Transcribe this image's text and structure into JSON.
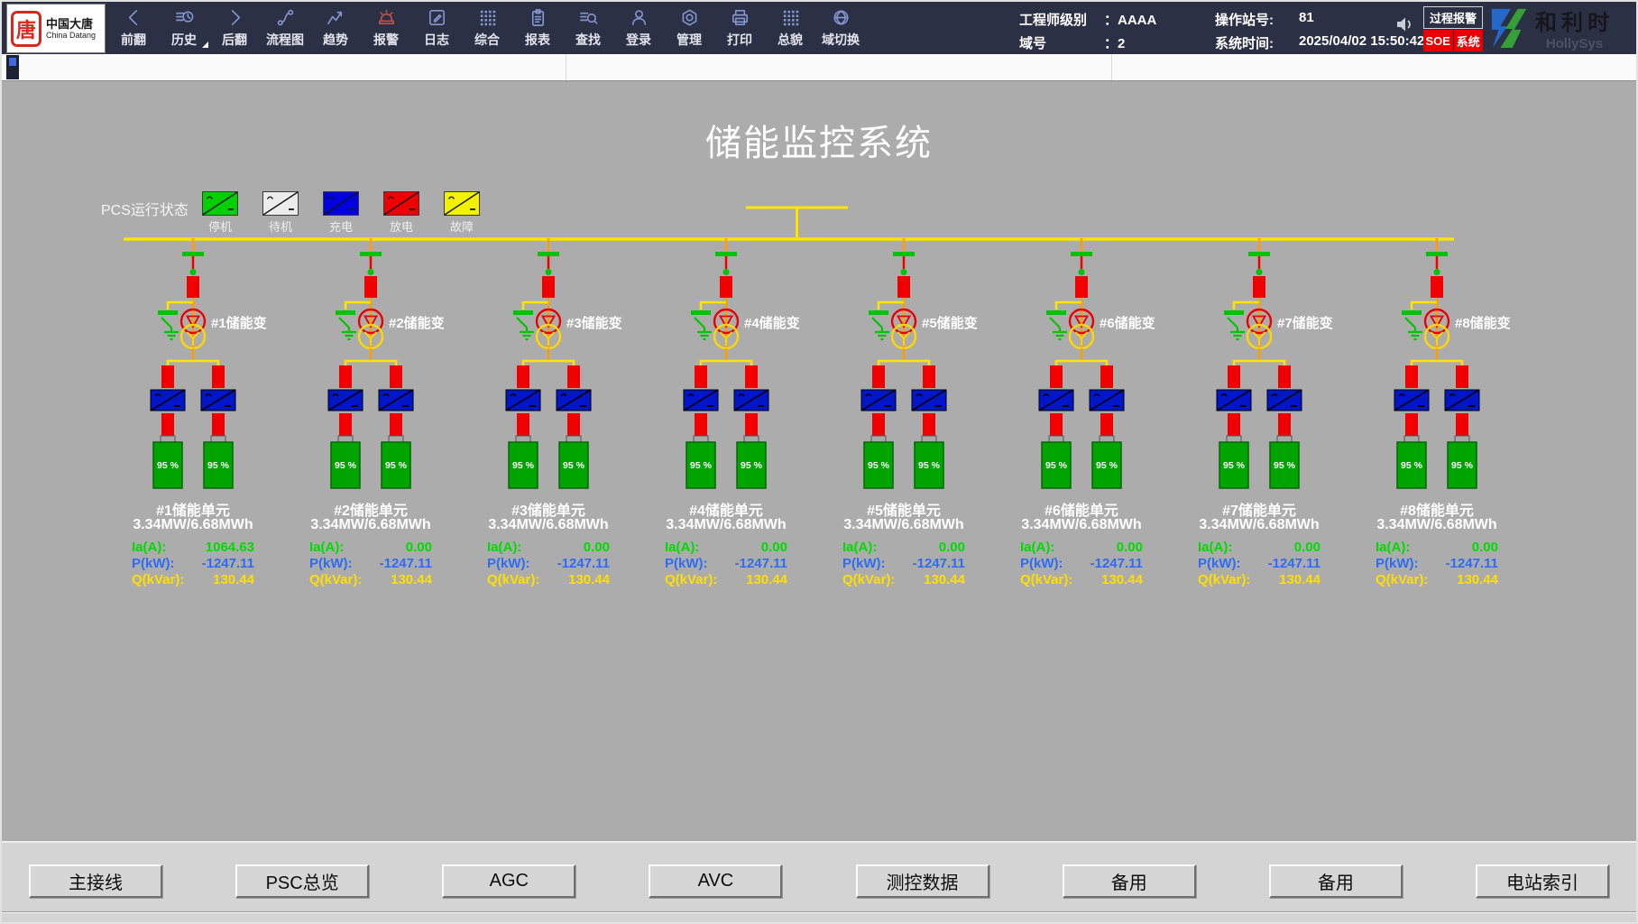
{
  "header": {
    "logo": {
      "seal": "唐",
      "cn": "中国大唐",
      "en": "China Datang"
    },
    "menu": [
      {
        "label": "前翻",
        "icon": "chevron-left"
      },
      {
        "label": "历史",
        "icon": "history",
        "has_dropdown": true
      },
      {
        "label": "后翻",
        "icon": "chevron-right"
      },
      {
        "label": "流程图",
        "icon": "flowchart"
      },
      {
        "label": "趋势",
        "icon": "trend"
      },
      {
        "label": "报警",
        "icon": "alarm",
        "accent": "red"
      },
      {
        "label": "日志",
        "icon": "edit"
      },
      {
        "label": "综合",
        "icon": "grid"
      },
      {
        "label": "报表",
        "icon": "report"
      },
      {
        "label": "查找",
        "icon": "search"
      },
      {
        "label": "登录",
        "icon": "user"
      },
      {
        "label": "管理",
        "icon": "gear"
      },
      {
        "label": "打印",
        "icon": "printer"
      },
      {
        "label": "总貌",
        "icon": "grid"
      },
      {
        "label": "域切换",
        "icon": "globe"
      }
    ],
    "info": {
      "engineer_label": "工程师级别",
      "engineer_value": "：AAAA",
      "domain_label": "域号",
      "domain_value": "：2",
      "station_label": "操作站号:",
      "station_value": "81",
      "time_label": "系统时间:",
      "time_value": "2025/04/02 15:50:42"
    },
    "alarm_panel": {
      "process": "过程报警",
      "soe": "SOE",
      "system": "系统"
    },
    "brand": {
      "cn": "和利时",
      "en": "HollySys"
    }
  },
  "title": "储能监控系统",
  "legend": {
    "label": "PCS运行状态",
    "items": [
      {
        "label": "停机",
        "color": "#00d000"
      },
      {
        "label": "待机",
        "color": "#ececec"
      },
      {
        "label": "充电",
        "color": "#0000e0"
      },
      {
        "label": "放电",
        "color": "#ee0000"
      },
      {
        "label": "故障",
        "color": "#f2f200"
      }
    ]
  },
  "unit_labels": {
    "ia": "Ia(A):",
    "p": "P(kW):",
    "q": "Q(kVar):"
  },
  "units": [
    {
      "transformer": "#1储能变",
      "name": "#1储能单元",
      "capacity": "3.34MW/6.68MWh",
      "ia": "1064.63",
      "p": "-1247.11",
      "q": "130.44",
      "soc1": "95 %",
      "soc2": "95 %"
    },
    {
      "transformer": "#2储能变",
      "name": "#2储能单元",
      "capacity": "3.34MW/6.68MWh",
      "ia": "0.00",
      "p": "-1247.11",
      "q": "130.44",
      "soc1": "95 %",
      "soc2": "95 %"
    },
    {
      "transformer": "#3储能变",
      "name": "#3储能单元",
      "capacity": "3.34MW/6.68MWh",
      "ia": "0.00",
      "p": "-1247.11",
      "q": "130.44",
      "soc1": "95 %",
      "soc2": "95 %"
    },
    {
      "transformer": "#4储能变",
      "name": "#4储能单元",
      "capacity": "3.34MW/6.68MWh",
      "ia": "0.00",
      "p": "-1247.11",
      "q": "130.44",
      "soc1": "95 %",
      "soc2": "95 %"
    },
    {
      "transformer": "#5储能变",
      "name": "#5储能单元",
      "capacity": "3.34MW/6.68MWh",
      "ia": "0.00",
      "p": "-1247.11",
      "q": "130.44",
      "soc1": "95 %",
      "soc2": "95 %"
    },
    {
      "transformer": "#6储能变",
      "name": "#6储能单元",
      "capacity": "3.34MW/6.68MWh",
      "ia": "0.00",
      "p": "-1247.11",
      "q": "130.44",
      "soc1": "95 %",
      "soc2": "95 %"
    },
    {
      "transformer": "#7储能变",
      "name": "#7储能单元",
      "capacity": "3.34MW/6.68MWh",
      "ia": "0.00",
      "p": "-1247.11",
      "q": "130.44",
      "soc1": "95 %",
      "soc2": "95 %"
    },
    {
      "transformer": "#8储能变",
      "name": "#8储能单元",
      "capacity": "3.34MW/6.68MWh",
      "ia": "0.00",
      "p": "-1247.11",
      "q": "130.44",
      "soc1": "95 %",
      "soc2": "95 %"
    }
  ],
  "footer": {
    "buttons": [
      "主接线",
      "PSC总览",
      "AGC",
      "AVC",
      "测控数据",
      "备用",
      "备用",
      "电站索引"
    ]
  },
  "colors": {
    "toolbar_bg": "#2b3044",
    "canvas_bg": "#acacac",
    "bus_yellow": "#ffe400",
    "feeder_orange": "#ff9d00",
    "breaker_red": "#f00000",
    "device_green": "#00c400",
    "pcs_blue": "#0016c8",
    "battery_green": "#00a400",
    "data_green": "#00dc00",
    "data_blue": "#2e6cf5",
    "data_yellow": "#ffdf00",
    "soe_red": "#e80000"
  }
}
